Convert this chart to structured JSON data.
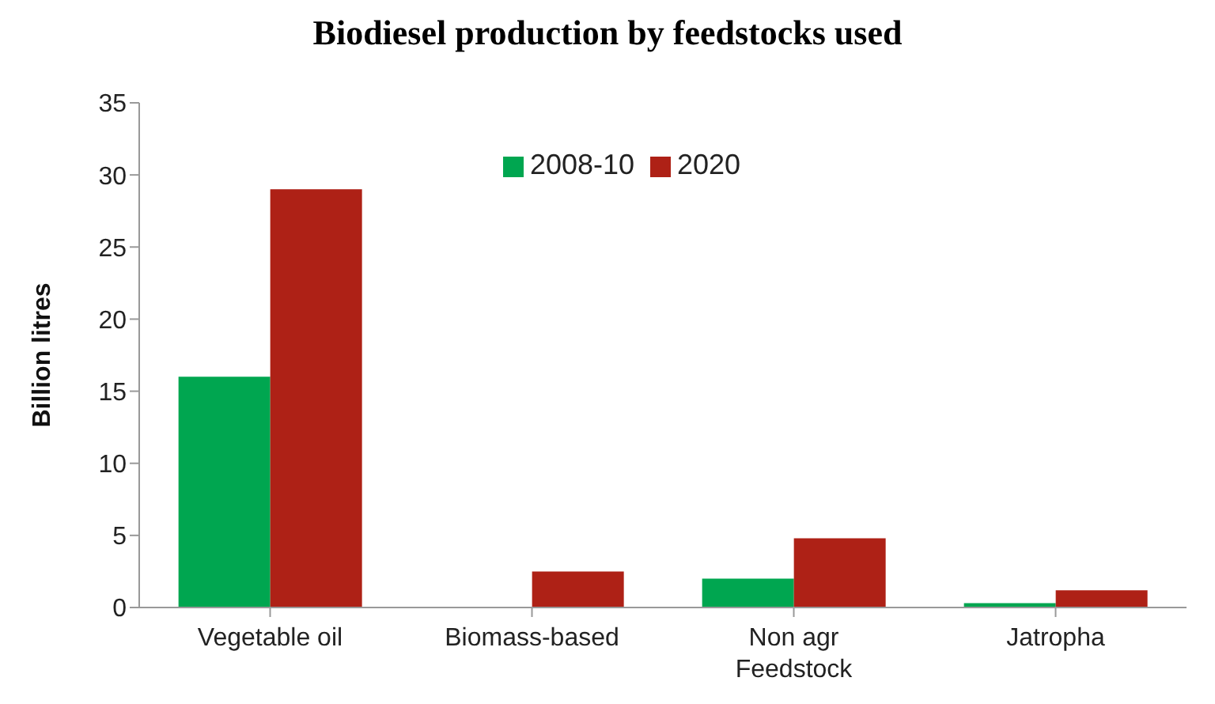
{
  "chart_data": {
    "type": "bar",
    "title": "Biodiesel production by feedstocks used",
    "ylabel": "Billion litres",
    "categories": [
      "Vegetable oil",
      "Biomass-based",
      "Non agr Feedstock",
      "Jatropha"
    ],
    "series": [
      {
        "name": "2008-10",
        "color": "#00a650",
        "values": [
          16,
          null,
          2,
          0.3
        ]
      },
      {
        "name": "2020",
        "color": "#ae2116",
        "values": [
          29,
          2.5,
          4.8,
          1.2
        ]
      }
    ],
    "ylim": [
      0,
      35
    ],
    "yticks": [
      0,
      5,
      10,
      15,
      20,
      25,
      30,
      35
    ],
    "grid": false,
    "legend": "top"
  }
}
